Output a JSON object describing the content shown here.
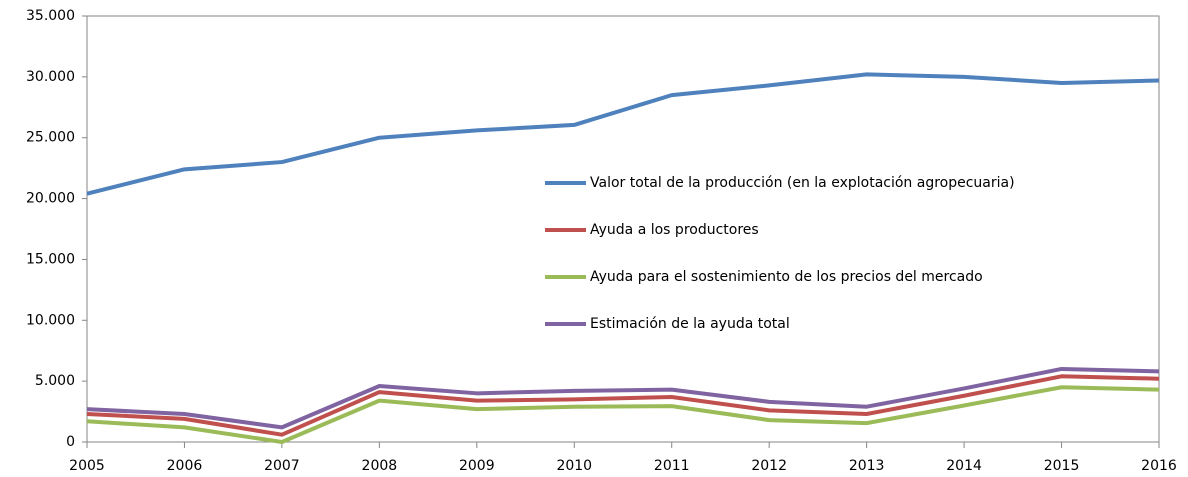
{
  "chart_data": {
    "type": "line",
    "x": [
      2005,
      2006,
      2007,
      2008,
      2009,
      2010,
      2011,
      2012,
      2013,
      2014,
      2015,
      2016
    ],
    "series": [
      {
        "name": "Valor total de la producción (en la explotación agropecuaria)",
        "color": "#4f81bd",
        "values": [
          20400,
          22400,
          23000,
          25000,
          25600,
          26050,
          28500,
          29300,
          30200,
          30000,
          29500,
          29700
        ]
      },
      {
        "name": "Ayuda a los productores",
        "color": "#c0504d",
        "values": [
          2300,
          1900,
          600,
          4100,
          3400,
          3500,
          3700,
          2600,
          2300,
          3800,
          5400,
          5200
        ]
      },
      {
        "name": "Ayuda para el sostenimiento de los precios del mercado",
        "color": "#9bbb59",
        "values": [
          1700,
          1200,
          0,
          3400,
          2700,
          2900,
          2950,
          1800,
          1550,
          3000,
          4500,
          4300
        ]
      },
      {
        "name": "Estimación de la ayuda total",
        "color": "#8064a2",
        "values": [
          2700,
          2300,
          1200,
          4600,
          4000,
          4200,
          4300,
          3300,
          2900,
          4400,
          6000,
          5800
        ]
      }
    ],
    "xlim": [
      2005,
      2016
    ],
    "xticks": [
      2005,
      2006,
      2007,
      2008,
      2009,
      2010,
      2011,
      2012,
      2013,
      2014,
      2015,
      2016
    ],
    "ylim": [
      0,
      35000
    ],
    "yticks": [
      0,
      {
        "value": 5000,
        "label": "5.000"
      },
      {
        "value": 10000,
        "label": "10.000"
      },
      {
        "value": 15000,
        "label": "15.000"
      },
      {
        "value": 20000,
        "label": "20.000"
      },
      {
        "value": 25000,
        "label": "25.000"
      },
      {
        "value": 30000,
        "label": "30.000"
      },
      {
        "value": 35000,
        "label": "35.000"
      }
    ],
    "grid": false
  }
}
